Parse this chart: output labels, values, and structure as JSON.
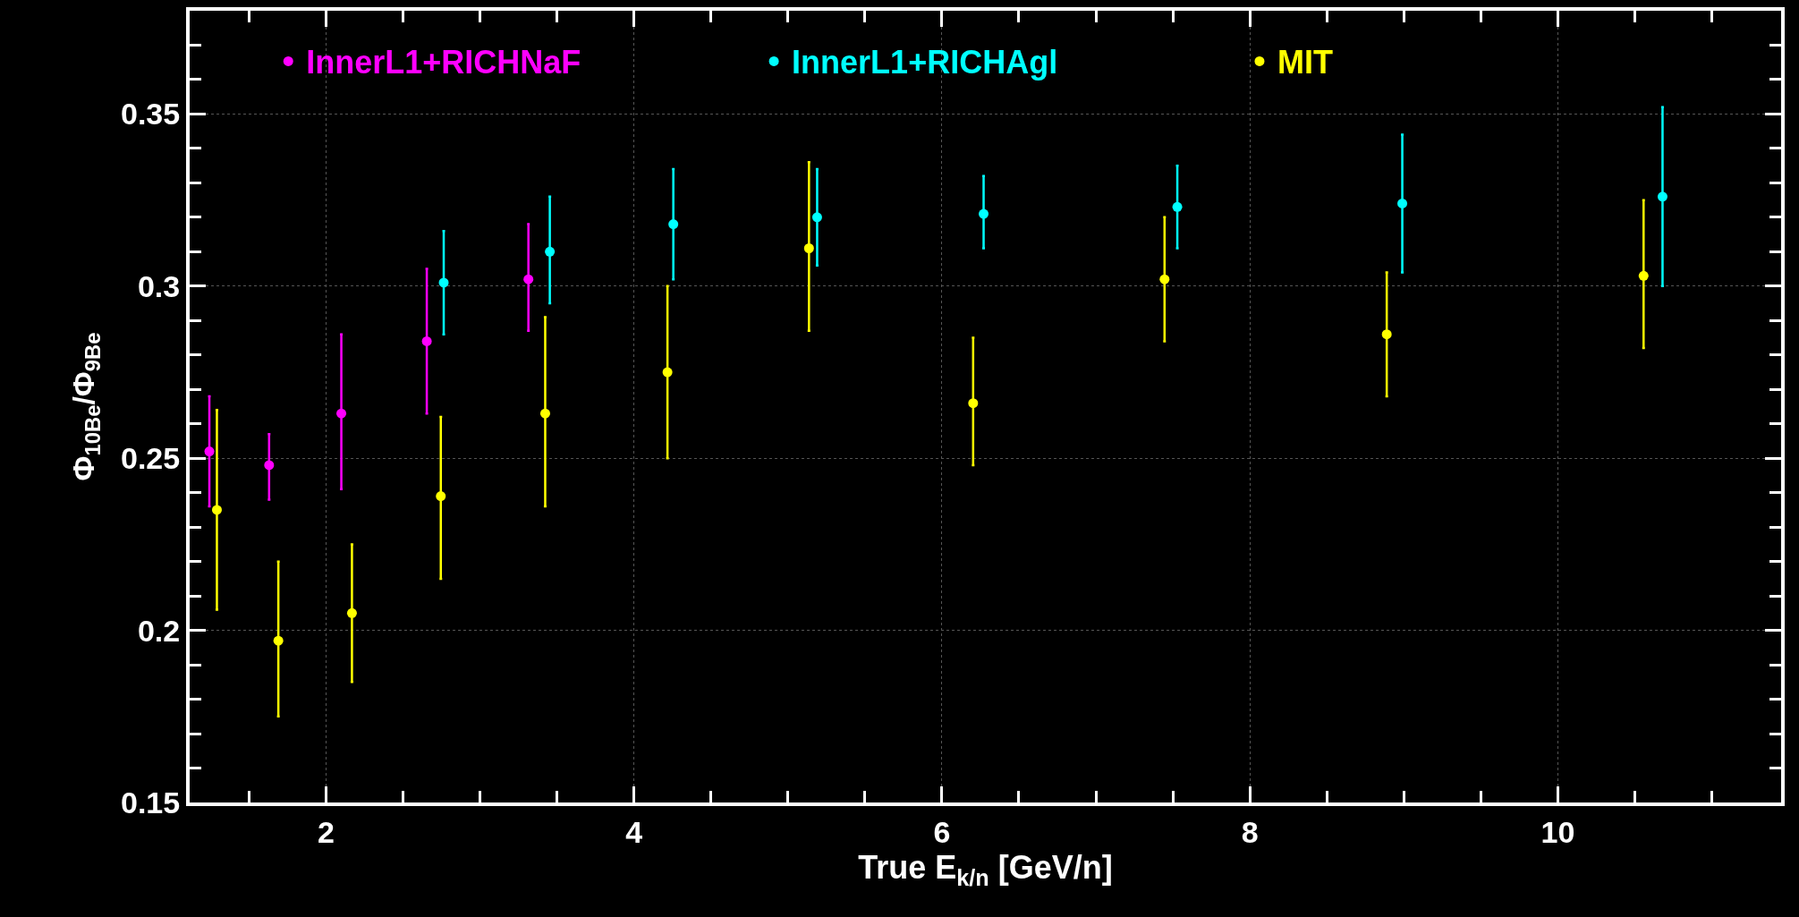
{
  "chart_data": {
    "type": "scatter",
    "xlabel": "True E$_{k/n}$ [GeV/n]",
    "ylabel": "Φ$_{10Be}$/Φ$_{9Be}$",
    "xlim": [
      1.115,
      11.45
    ],
    "ylim": [
      0.15,
      0.38
    ],
    "xticks": [
      2,
      4,
      6,
      8,
      10
    ],
    "yticks": [
      {
        "value": 0.15,
        "label": "0.15"
      },
      {
        "value": 0.2,
        "label": "0.2"
      },
      {
        "value": 0.25,
        "label": "0.25"
      },
      {
        "value": 0.3,
        "label": "0.3"
      },
      {
        "value": 0.35,
        "label": "0.35"
      }
    ],
    "grid": true,
    "legend": "top",
    "marker": "circle",
    "series": [
      {
        "name": "InnerL1+RICHNaF",
        "color": "#ff00ff",
        "x": [
          1.243,
          1.631,
          2.1,
          2.655,
          3.315
        ],
        "values": [
          0.252,
          0.248,
          0.263,
          0.284,
          0.302
        ],
        "errors": [
          [
            0.236,
            0.268
          ],
          [
            0.238,
            0.257
          ],
          [
            0.241,
            0.286
          ],
          [
            0.263,
            0.305
          ],
          [
            0.287,
            0.318
          ]
        ]
      },
      {
        "name": "InnerL1+RICHAgl",
        "color": "#00ffff",
        "x": [
          2.765,
          3.454,
          4.256,
          5.19,
          6.271,
          7.529,
          8.99,
          10.68
        ],
        "values": [
          0.301,
          0.31,
          0.318,
          0.32,
          0.321,
          0.323,
          0.324,
          0.326
        ],
        "errors": [
          [
            0.286,
            0.316
          ],
          [
            0.295,
            0.326
          ],
          [
            0.302,
            0.334
          ],
          [
            0.306,
            0.334
          ],
          [
            0.311,
            0.332
          ],
          [
            0.311,
            0.335
          ],
          [
            0.304,
            0.344
          ],
          [
            0.3,
            0.352
          ]
        ]
      },
      {
        "name": "MIT",
        "color": "#ffff00",
        "x": [
          1.292,
          1.691,
          2.169,
          2.746,
          3.424,
          4.218,
          5.137,
          6.203,
          7.446,
          8.889,
          10.557
        ],
        "values": [
          0.235,
          0.197,
          0.205,
          0.239,
          0.263,
          0.275,
          0.311,
          0.266,
          0.302,
          0.286,
          0.303
        ],
        "errors": [
          [
            0.206,
            0.264
          ],
          [
            0.175,
            0.22
          ],
          [
            0.185,
            0.225
          ],
          [
            0.215,
            0.262
          ],
          [
            0.236,
            0.291
          ],
          [
            0.25,
            0.3
          ],
          [
            0.287,
            0.336
          ],
          [
            0.248,
            0.285
          ],
          [
            0.284,
            0.32
          ],
          [
            0.268,
            0.304
          ],
          [
            0.282,
            0.325
          ]
        ]
      }
    ]
  }
}
